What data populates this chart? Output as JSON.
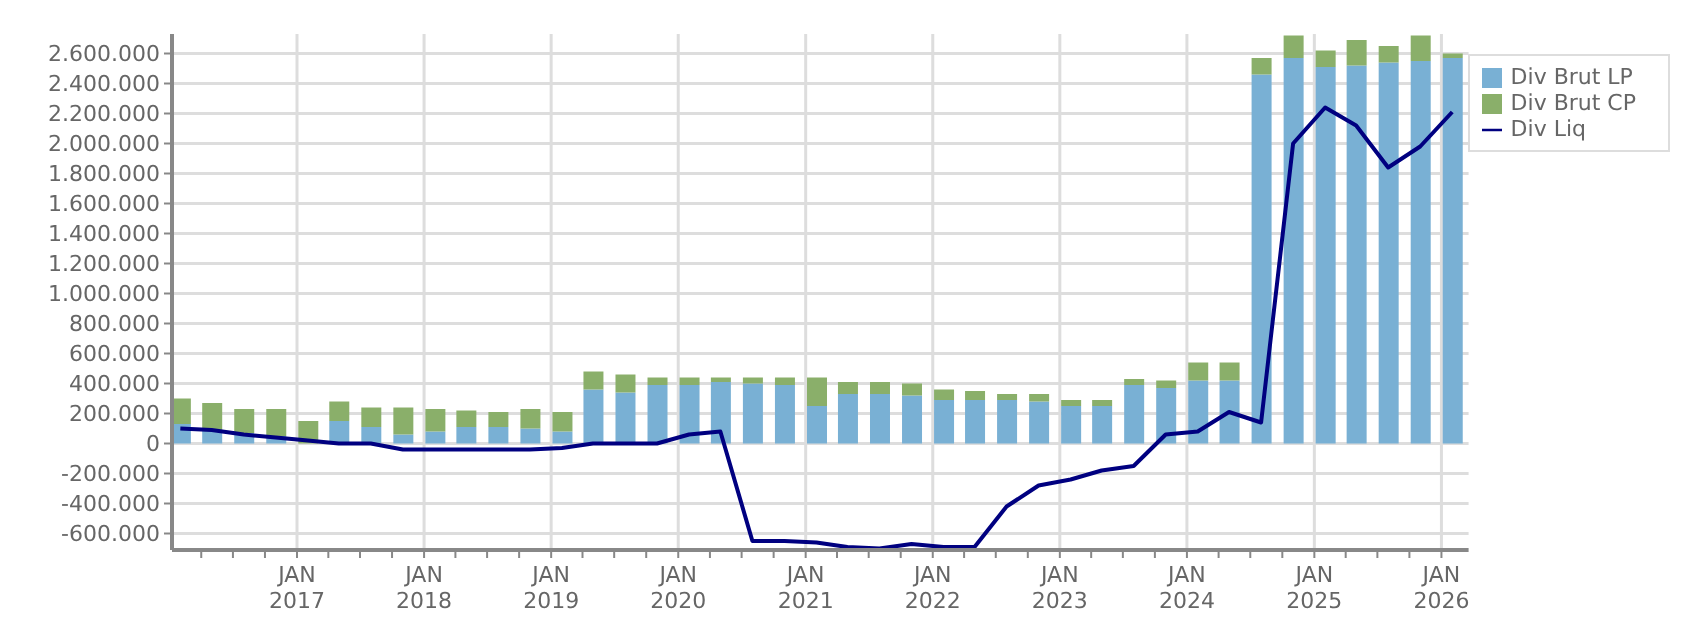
{
  "chart_data": {
    "type": "bar",
    "stacked": true,
    "x": [
      "2016-02",
      "2016-05",
      "2016-08",
      "2016-11",
      "2017-02",
      "2017-05",
      "2017-08",
      "2017-11",
      "2018-02",
      "2018-05",
      "2018-08",
      "2018-11",
      "2019-02",
      "2019-05",
      "2019-08",
      "2019-11",
      "2020-02",
      "2020-05",
      "2020-08",
      "2020-11",
      "2021-02",
      "2021-05",
      "2021-08",
      "2021-11",
      "2022-02",
      "2022-05",
      "2022-08",
      "2022-11",
      "2023-02",
      "2023-05",
      "2023-08",
      "2023-11",
      "2024-02",
      "2024-05",
      "2024-08",
      "2024-11",
      "2025-02",
      "2025-05",
      "2025-08",
      "2025-11",
      "2026-02"
    ],
    "series": [
      {
        "name": "Div Brut LP",
        "color": "#79b0d4",
        "values": [
          130000,
          90000,
          70000,
          50000,
          null,
          150000,
          110000,
          60000,
          80000,
          110000,
          110000,
          100000,
          80000,
          360000,
          340000,
          390000,
          390000,
          410000,
          400000,
          390000,
          250000,
          330000,
          330000,
          320000,
          290000,
          290000,
          290000,
          280000,
          250000,
          250000,
          390000,
          370000,
          420000,
          420000,
          2460000,
          2570000,
          2510000,
          2520000,
          2540000,
          2550000,
          2570000
        ]
      },
      {
        "name": "Div Brut CP",
        "color": "#8aaf6a",
        "values": [
          170000,
          180000,
          160000,
          180000,
          150000,
          130000,
          130000,
          180000,
          150000,
          110000,
          100000,
          130000,
          130000,
          120000,
          120000,
          50000,
          50000,
          30000,
          40000,
          50000,
          190000,
          80000,
          80000,
          80000,
          70000,
          60000,
          40000,
          50000,
          40000,
          40000,
          40000,
          50000,
          120000,
          120000,
          110000,
          150000,
          110000,
          170000,
          110000,
          170000,
          30000
        ]
      },
      {
        "name": "Div Liq",
        "type": "line",
        "color": "#000080",
        "values": [
          100000,
          90000,
          60000,
          40000,
          20000,
          0,
          0,
          -40000,
          -40000,
          -40000,
          -40000,
          -40000,
          -30000,
          0,
          0,
          0,
          60000,
          80000,
          -650000,
          -650000,
          -660000,
          -690000,
          -700000,
          -670000,
          -690000,
          -690000,
          -420000,
          -280000,
          -240000,
          -180000,
          -150000,
          60000,
          80000,
          210000,
          140000,
          2000000,
          2240000,
          2120000,
          1840000,
          1980000,
          2210000
        ]
      }
    ],
    "xlim": [
      "2016-01-08",
      "2026-03-20"
    ],
    "xticks": [
      {
        "value": "2016-04",
        "label": null
      },
      {
        "value": "2016-07",
        "label": null
      },
      {
        "value": "2016-10",
        "label": null
      },
      {
        "value": "2017-01",
        "label": "JAN\n2017"
      },
      {
        "value": "2017-04",
        "label": null
      },
      {
        "value": "2017-07",
        "label": null
      },
      {
        "value": "2017-10",
        "label": null
      },
      {
        "value": "2018-01",
        "label": "JAN\n2018"
      },
      {
        "value": "2018-04",
        "label": null
      },
      {
        "value": "2018-07",
        "label": null
      },
      {
        "value": "2018-10",
        "label": null
      },
      {
        "value": "2019-01",
        "label": "JAN\n2019"
      },
      {
        "value": "2019-04",
        "label": null
      },
      {
        "value": "2019-07",
        "label": null
      },
      {
        "value": "2019-10",
        "label": null
      },
      {
        "value": "2020-01",
        "label": "JAN\n2020"
      },
      {
        "value": "2020-04",
        "label": null
      },
      {
        "value": "2020-07",
        "label": null
      },
      {
        "value": "2020-10",
        "label": null
      },
      {
        "value": "2021-01",
        "label": "JAN\n2021"
      },
      {
        "value": "2021-04",
        "label": null
      },
      {
        "value": "2021-07",
        "label": null
      },
      {
        "value": "2021-10",
        "label": null
      },
      {
        "value": "2022-01",
        "label": "JAN\n2022"
      },
      {
        "value": "2022-04",
        "label": null
      },
      {
        "value": "2022-07",
        "label": null
      },
      {
        "value": "2022-10",
        "label": null
      },
      {
        "value": "2023-01",
        "label": "JAN\n2023"
      },
      {
        "value": "2023-04",
        "label": null
      },
      {
        "value": "2023-07",
        "label": null
      },
      {
        "value": "2023-10",
        "label": null
      },
      {
        "value": "2024-01",
        "label": "JAN\n2024"
      },
      {
        "value": "2024-04",
        "label": null
      },
      {
        "value": "2024-07",
        "label": null
      },
      {
        "value": "2024-10",
        "label": null
      },
      {
        "value": "2025-01",
        "label": "JAN\n2025"
      },
      {
        "value": "2025-04",
        "label": null
      },
      {
        "value": "2025-07",
        "label": null
      },
      {
        "value": "2025-10",
        "label": null
      },
      {
        "value": "2026-01",
        "label": "JAN\n2026"
      }
    ],
    "ylim": [
      -710000,
      2730000
    ],
    "yticks": [
      {
        "value": -600000,
        "label": "-600.000"
      },
      {
        "value": -400000,
        "label": "-400.000"
      },
      {
        "value": -200000,
        "label": "-200.000"
      },
      {
        "value": 0,
        "label": "0"
      },
      {
        "value": 200000,
        "label": "200.000"
      },
      {
        "value": 400000,
        "label": "400.000"
      },
      {
        "value": 600000,
        "label": "600.000"
      },
      {
        "value": 800000,
        "label": "800.000"
      },
      {
        "value": 1000000,
        "label": "1.000.000"
      },
      {
        "value": 1200000,
        "label": "1.200.000"
      },
      {
        "value": 1400000,
        "label": "1.400.000"
      },
      {
        "value": 1600000,
        "label": "1.600.000"
      },
      {
        "value": 1800000,
        "label": "1.800.000"
      },
      {
        "value": 2000000,
        "label": "2.000.000"
      },
      {
        "value": 2200000,
        "label": "2.200.000"
      },
      {
        "value": 2400000,
        "label": "2.400.000"
      },
      {
        "value": 2600000,
        "label": "2.600.000"
      }
    ],
    "grid": true,
    "legend": "top right",
    "marker": "none",
    "line_style": "solid"
  }
}
